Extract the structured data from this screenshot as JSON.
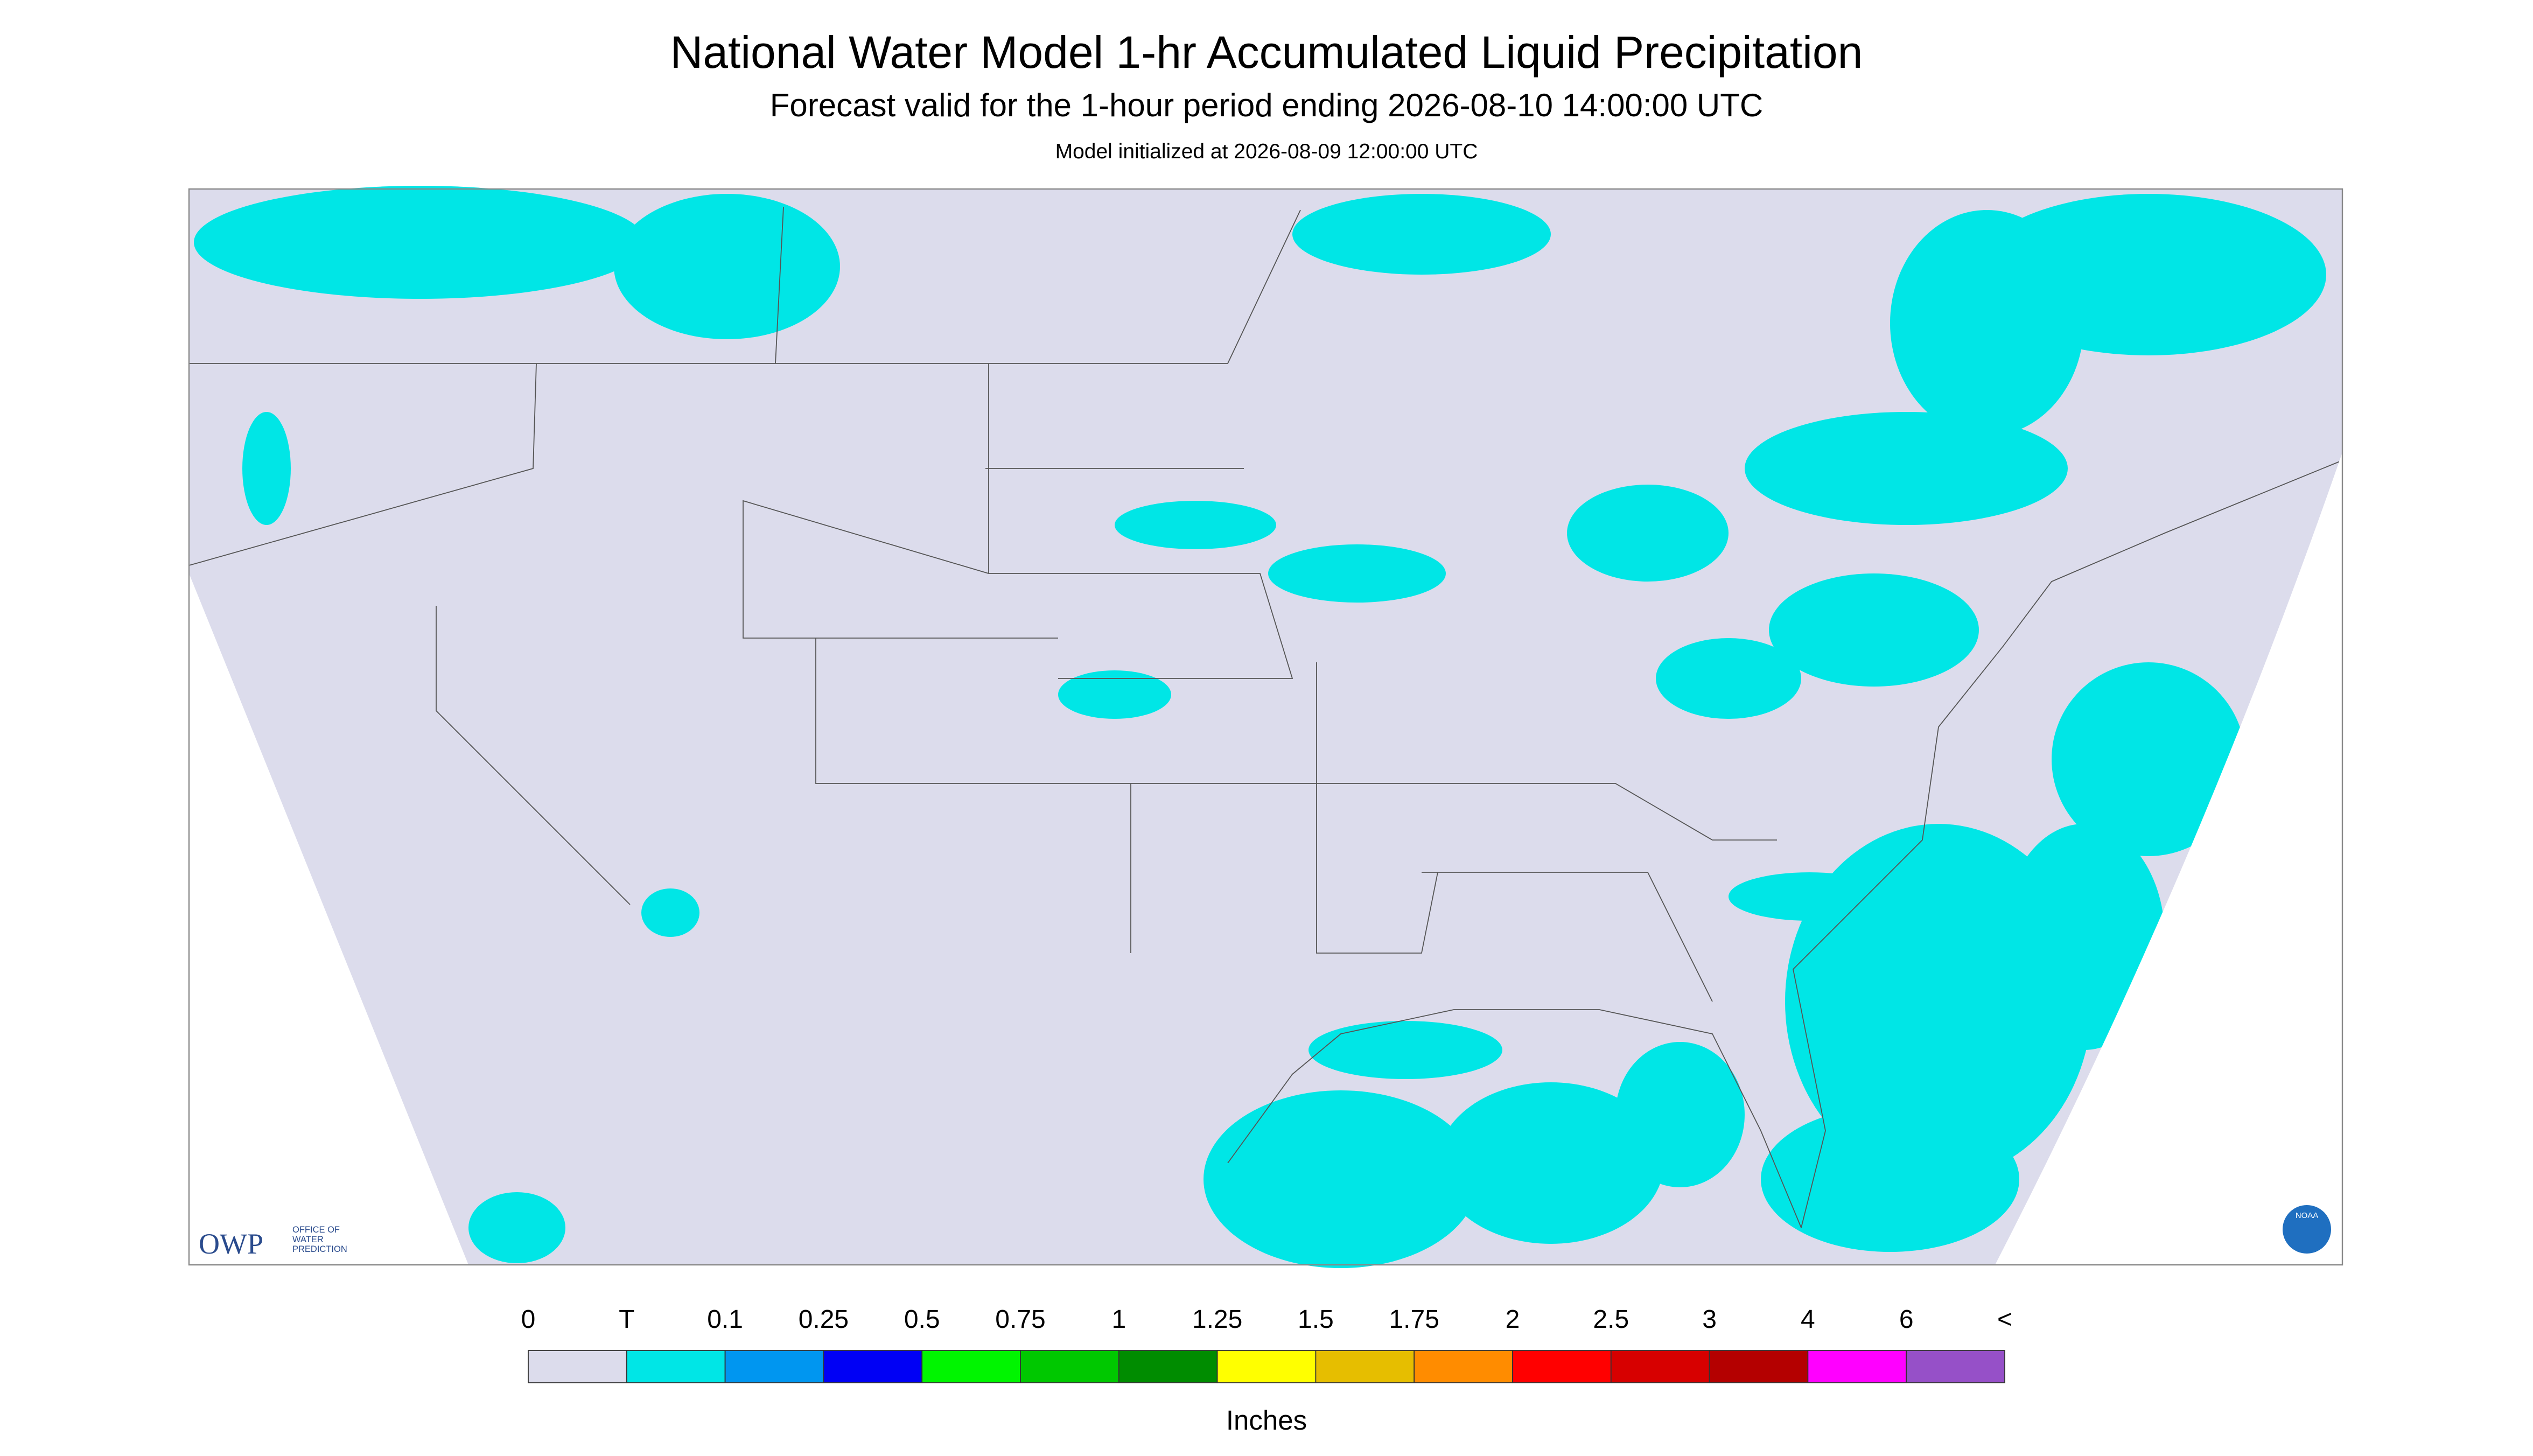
{
  "header": {
    "title": "National Water Model 1-hr Accumulated Liquid Precipitation",
    "subtitle": "Forecast valid for the 1-hour period ending 2026-08-10 14:00:00 UTC",
    "note": "Model initialized at 2026-08-09 12:00:00 UTC"
  },
  "logos": {
    "owp": "OWP",
    "owp_text": [
      "OFFICE OF",
      "WATER",
      "PREDICTION"
    ],
    "noaa": "NOAA"
  },
  "legend": {
    "labels": [
      "0",
      "T",
      "0.1",
      "0.25",
      "0.5",
      "0.75",
      "1",
      "1.25",
      "1.5",
      "1.75",
      "2",
      "2.5",
      "3",
      "4",
      "6",
      "<"
    ],
    "colors": [
      "#dcdcec",
      "#00e6e6",
      "#0096f0",
      "#0000f5",
      "#00f500",
      "#00c800",
      "#008c00",
      "#ffff00",
      "#e6be00",
      "#ff8c00",
      "#ff0000",
      "#d70000",
      "#b40000",
      "#ff00ff",
      "#9650c8"
    ],
    "unit": "Inches"
  }
}
